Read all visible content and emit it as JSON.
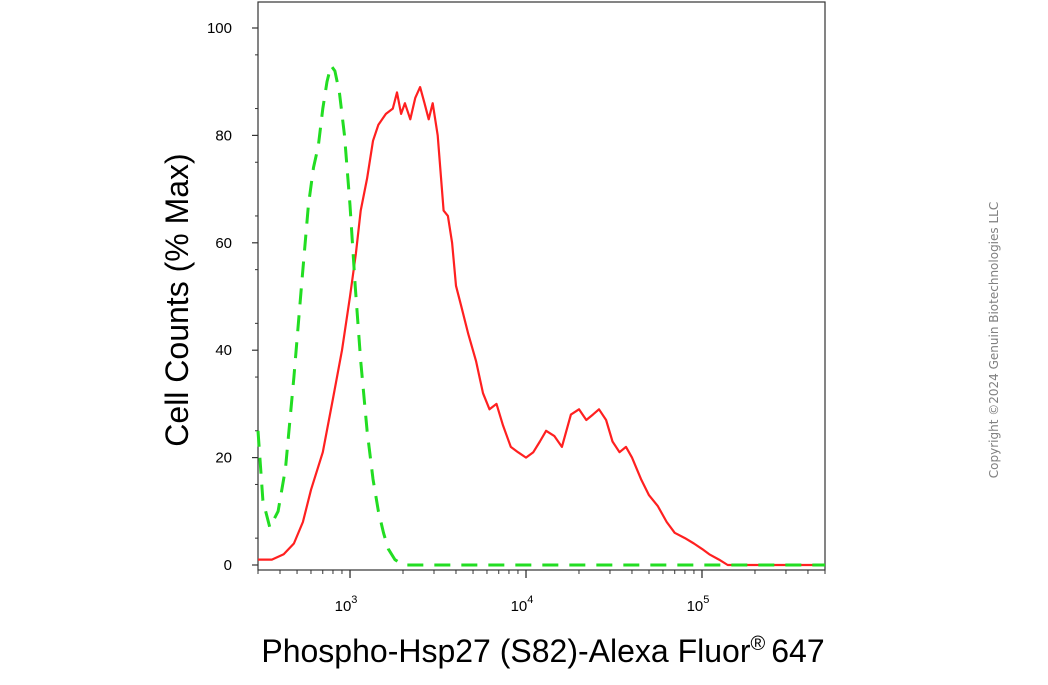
{
  "chart_data": {
    "type": "line",
    "title": "",
    "xlabel": "Phospho-Hsp27 (S82)-Alexa Fluor",
    "xlabel_superscript": "®",
    "xlabel_suffix": "647",
    "ylabel": "Cell Counts (% Max)",
    "xscale": "log",
    "xlim": [
      300,
      500000
    ],
    "ylim": [
      0,
      100
    ],
    "yticks": [
      "0",
      "20",
      "40",
      "60",
      "80",
      "100"
    ],
    "xticks": [
      {
        "base": "10",
        "exp": "3",
        "value": 1000
      },
      {
        "base": "10",
        "exp": "4",
        "value": 10000
      },
      {
        "base": "10",
        "exp": "5",
        "value": 100000
      }
    ],
    "series": [
      {
        "color": "#ff2020",
        "style": "solid",
        "x": [
          300,
          360,
          420,
          480,
          540,
          600,
          700,
          800,
          900,
          1000,
          1080,
          1150,
          1250,
          1350,
          1450,
          1600,
          1750,
          1850,
          1950,
          2050,
          2200,
          2350,
          2500,
          2650,
          2800,
          2950,
          3150,
          3400,
          3600,
          3800,
          4000,
          4300,
          4700,
          5200,
          5700,
          6200,
          6800,
          7400,
          8200,
          9000,
          10000,
          11000,
          12000,
          13000,
          14500,
          16000,
          18000,
          20000,
          22000,
          24000,
          26000,
          28500,
          31000,
          34000,
          37000,
          40000,
          45000,
          50000,
          56000,
          63000,
          70000,
          80000,
          90000,
          100000,
          110000,
          125000,
          140000,
          160000,
          180000,
          200000,
          250000,
          300000,
          400000,
          500000
        ],
        "y": [
          1,
          1,
          2,
          4,
          8,
          14,
          21,
          31,
          40,
          50,
          58,
          66,
          72,
          79,
          82,
          84,
          85,
          88,
          84,
          86,
          83,
          87,
          89,
          86,
          83,
          86,
          80,
          66,
          65,
          60,
          52,
          48,
          43,
          38,
          32,
          29,
          30,
          26,
          22,
          21,
          20,
          21,
          23,
          25,
          24,
          22,
          28,
          29,
          27,
          28,
          29,
          27,
          23,
          21,
          22,
          20,
          16,
          13,
          11,
          8,
          6,
          5,
          4,
          3,
          2,
          1,
          0,
          0,
          0,
          0,
          0,
          0,
          0,
          0
        ]
      },
      {
        "color": "#22dd22",
        "style": "dashed",
        "x": [
          300,
          320,
          350,
          390,
          430,
          480,
          530,
          580,
          620,
          660,
          700,
          740,
          780,
          820,
          870,
          930,
          1000,
          1070,
          1150,
          1250,
          1350,
          1450,
          1550,
          1650,
          1800,
          2000,
          2500,
          5000,
          10000,
          50000,
          500000
        ],
        "y": [
          25,
          12,
          7,
          10,
          18,
          35,
          52,
          67,
          74,
          78,
          85,
          90,
          93,
          92,
          88,
          80,
          67,
          52,
          38,
          25,
          16,
          10,
          6,
          3,
          1,
          0,
          0,
          0,
          0,
          0,
          0
        ]
      }
    ],
    "grid": false,
    "legend": "none"
  },
  "copyright": "Copyright ©2024 Genuin Biotechnologies LLC"
}
